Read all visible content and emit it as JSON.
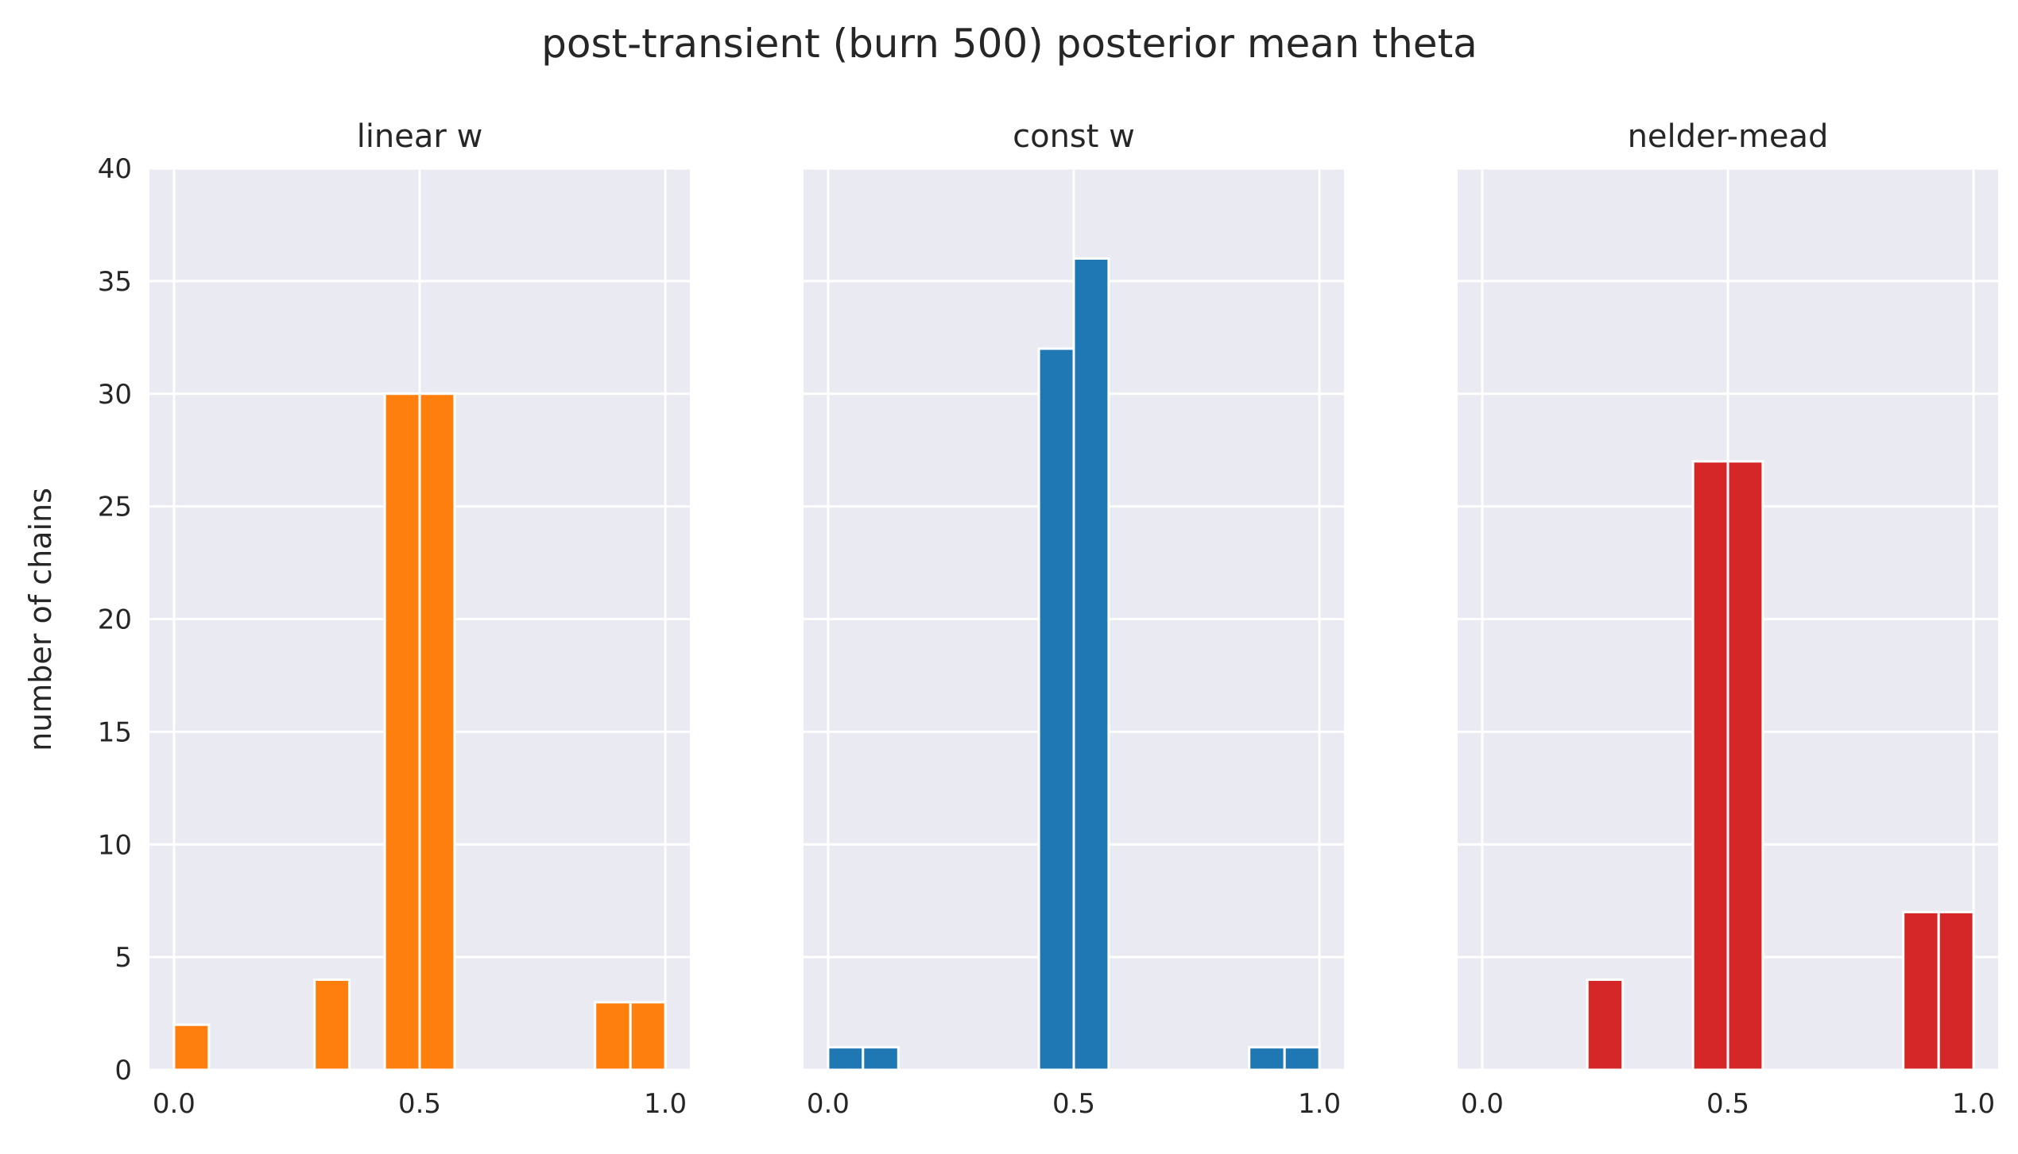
{
  "figure": {
    "suptitle": "post-transient (burn 500) posterior mean theta",
    "ylabel": "number of chains"
  },
  "chart_data": [
    {
      "type": "bar",
      "title": "linear w",
      "xlabel": "",
      "ylabel": "number of chains",
      "xlim": [
        -0.05,
        1.05
      ],
      "ylim": [
        0,
        40
      ],
      "xticks": [
        0.0,
        0.5,
        1.0
      ],
      "xtick_labels": [
        "0.0",
        "0.5",
        "1.0"
      ],
      "yticks": [
        0,
        5,
        10,
        15,
        20,
        25,
        30,
        35,
        40
      ],
      "ytick_labels": [
        "0",
        "5",
        "10",
        "15",
        "20",
        "25",
        "30",
        "35",
        "40"
      ],
      "color": "#ff7f0e",
      "grid": true,
      "bins": [
        {
          "x0": 0.0,
          "x1": 0.071,
          "count": 2
        },
        {
          "x0": 0.286,
          "x1": 0.357,
          "count": 4
        },
        {
          "x0": 0.429,
          "x1": 0.5,
          "count": 30
        },
        {
          "x0": 0.5,
          "x1": 0.571,
          "count": 30
        },
        {
          "x0": 0.857,
          "x1": 0.929,
          "count": 3
        },
        {
          "x0": 0.929,
          "x1": 1.0,
          "count": 3
        }
      ]
    },
    {
      "type": "bar",
      "title": "const w",
      "xlabel": "",
      "ylabel": "",
      "xlim": [
        -0.05,
        1.05
      ],
      "ylim": [
        0,
        40
      ],
      "xticks": [
        0.0,
        0.5,
        1.0
      ],
      "xtick_labels": [
        "0.0",
        "0.5",
        "1.0"
      ],
      "yticks": [
        0,
        5,
        10,
        15,
        20,
        25,
        30,
        35,
        40
      ],
      "color": "#1f77b4",
      "grid": true,
      "bins": [
        {
          "x0": 0.0,
          "x1": 0.071,
          "count": 1
        },
        {
          "x0": 0.071,
          "x1": 0.143,
          "count": 1
        },
        {
          "x0": 0.429,
          "x1": 0.5,
          "count": 32
        },
        {
          "x0": 0.5,
          "x1": 0.571,
          "count": 36
        },
        {
          "x0": 0.857,
          "x1": 0.929,
          "count": 1
        },
        {
          "x0": 0.929,
          "x1": 1.0,
          "count": 1
        }
      ]
    },
    {
      "type": "bar",
      "title": "nelder-mead",
      "xlabel": "",
      "ylabel": "",
      "xlim": [
        -0.05,
        1.05
      ],
      "ylim": [
        0,
        40
      ],
      "xticks": [
        0.0,
        0.5,
        1.0
      ],
      "xtick_labels": [
        "0.0",
        "0.5",
        "1.0"
      ],
      "yticks": [
        0,
        5,
        10,
        15,
        20,
        25,
        30,
        35,
        40
      ],
      "color": "#d62728",
      "grid": true,
      "bins": [
        {
          "x0": 0.214,
          "x1": 0.286,
          "count": 4
        },
        {
          "x0": 0.429,
          "x1": 0.5,
          "count": 27
        },
        {
          "x0": 0.5,
          "x1": 0.571,
          "count": 27
        },
        {
          "x0": 0.857,
          "x1": 0.929,
          "count": 7
        },
        {
          "x0": 0.929,
          "x1": 1.0,
          "count": 7
        }
      ]
    }
  ]
}
